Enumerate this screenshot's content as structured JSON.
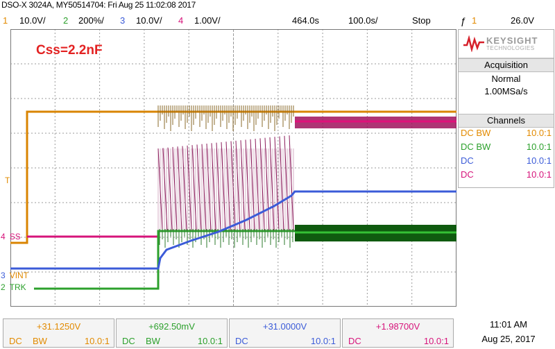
{
  "header": {
    "title": "DSO-X 3024A, MY50514704: Fri Aug 25 11:02:08 2017"
  },
  "channel_bar": {
    "ch1": {
      "num": "1",
      "scale": "10.0V/",
      "color": "#e28a00"
    },
    "ch2": {
      "num": "2",
      "scale": "200%/",
      "color": "#2ca02c"
    },
    "ch3": {
      "num": "3",
      "scale": "10.0V/",
      "color": "#3b5bd8"
    },
    "ch4": {
      "num": "4",
      "scale": "1.00V/",
      "color": "#d6137a"
    },
    "timebase": "464.0s",
    "time_scale": "100.0s/",
    "run_state": "Stop",
    "trigger_icon": "rising-edge-trigger-icon",
    "trigger_channel": "1",
    "trigger_level": "26.0V"
  },
  "annotation": "Css=2.2nF",
  "trace_labels": {
    "ss": {
      "num": "4",
      "name": "SS"
    },
    "vint": {
      "num": "3",
      "name": "VINT"
    },
    "trk": {
      "num": "2",
      "name": "TRK"
    },
    "t": "T"
  },
  "right_panel": {
    "brand": "KEYSIGHT",
    "brand_sub": "TECHNOLOGIES",
    "acquisition": {
      "title": "Acquisition",
      "mode": "Normal",
      "rate": "1.00MSa/s"
    },
    "channels": {
      "title": "Channels",
      "rows": [
        {
          "coupling": "DC BW",
          "probe": "10.0:1",
          "color": "#e28a00"
        },
        {
          "coupling": "DC BW",
          "probe": "10.0:1",
          "color": "#2ca02c"
        },
        {
          "coupling": "DC",
          "probe": "10.0:1",
          "color": "#3b5bd8"
        },
        {
          "coupling": "DC",
          "probe": "10.0:1",
          "color": "#d6137a"
        }
      ]
    }
  },
  "measurements": [
    {
      "value": "+31.1250V",
      "c1": "DC",
      "c2": "BW",
      "probe": "10.0:1",
      "color": "#e28a00"
    },
    {
      "value": "+692.50mV",
      "c1": "DC",
      "c2": "BW",
      "probe": "10.0:1",
      "color": "#2ca02c"
    },
    {
      "value": "+31.0000V",
      "c1": "DC",
      "c2": "",
      "probe": "10.0:1",
      "color": "#3b5bd8"
    },
    {
      "value": "+1.98700V",
      "c1": "DC",
      "c2": "",
      "probe": "10.0:1",
      "color": "#d6137a"
    }
  ],
  "clock": {
    "time": "11:01 AM",
    "date": "Aug 25, 2017"
  }
}
